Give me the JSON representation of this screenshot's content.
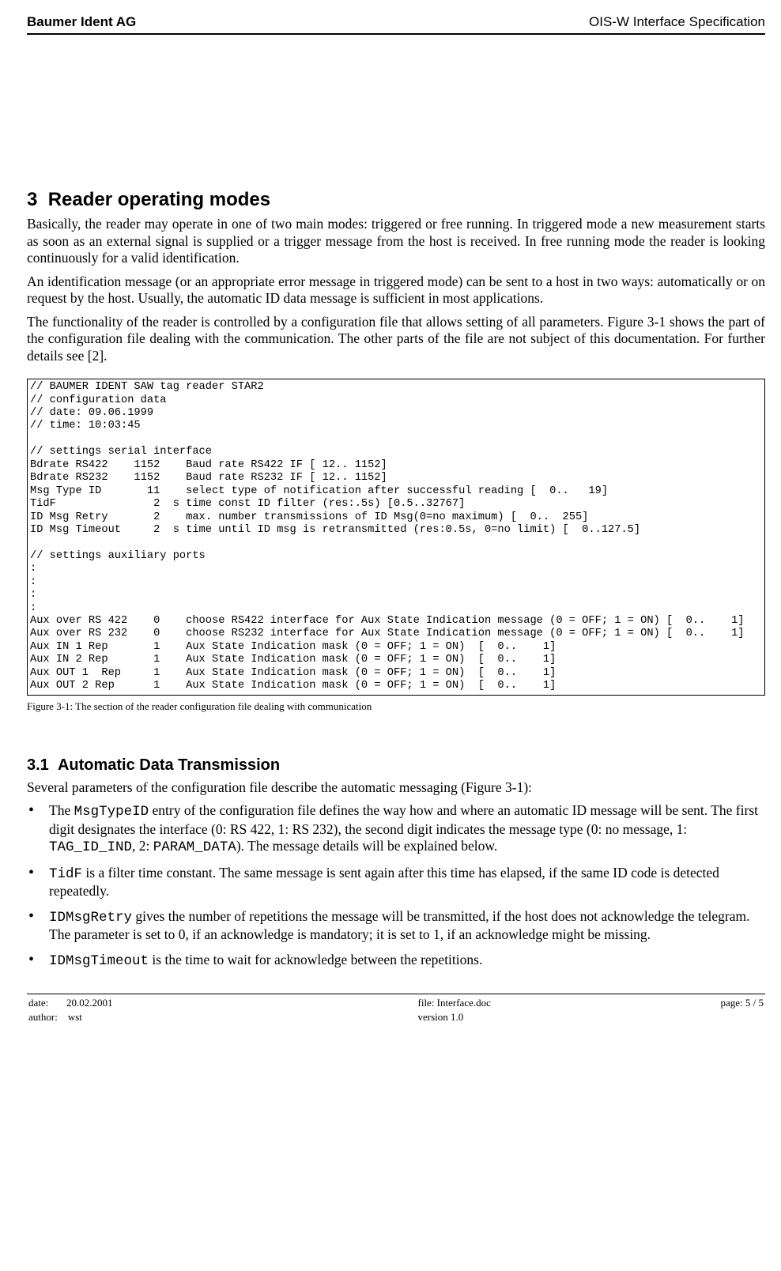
{
  "header": {
    "company": "Baumer Ident AG",
    "doc_title": "OIS-W Interface Specification"
  },
  "section": {
    "number": "3",
    "title": "Reader operating modes"
  },
  "paragraphs": {
    "p1": "Basically, the reader may operate in one of two main modes: triggered or free running. In triggered mode a new measurement starts as soon as an external signal is supplied or a trigger message from the host is received. In free running mode the reader is looking continuously for a valid identification.",
    "p2": "An identification message (or an appropriate error message in triggered mode) can be sent to a host in two ways: automatically or on request by the host. Usually, the automatic ID data message is sufficient in most applications.",
    "p3": "The functionality of the reader is controlled by a configuration file that allows setting of all parameters. Figure 3-1 shows the part of the configuration file dealing with the communication. The other parts of the file are not subject of this documentation. For further details see [2]."
  },
  "config_text": "// BAUMER IDENT SAW tag reader STAR2\n// configuration data\n// date: 09.06.1999\n// time: 10:03:45\n\n// settings serial interface\nBdrate RS422    1152    Baud rate RS422 IF [ 12.. 1152]\nBdrate RS232    1152    Baud rate RS232 IF [ 12.. 1152]\nMsg Type ID       11    select type of notification after successful reading [  0..   19]\nTidF               2  s time const ID filter (res:.5s) [0.5..32767]\nID Msg Retry       2    max. number transmissions of ID Msg(0=no maximum) [  0..  255]\nID Msg Timeout     2  s time until ID msg is retransmitted (res:0.5s, 0=no limit) [  0..127.5]\n\n// settings auxiliary ports\n:\n:\n:\n:\nAux over RS 422    0    choose RS422 interface for Aux State Indication message (0 = OFF; 1 = ON) [  0..    1]\nAux over RS 232    0    choose RS232 interface for Aux State Indication message (0 = OFF; 1 = ON) [  0..    1]\nAux IN 1 Rep       1    Aux State Indication mask (0 = OFF; 1 = ON)  [  0..    1]\nAux IN 2 Rep       1    Aux State Indication mask (0 = OFF; 1 = ON)  [  0..    1]\nAux OUT 1  Rep     1    Aux State Indication mask (0 = OFF; 1 = ON)  [  0..    1]\nAux OUT 2 Rep      1    Aux State Indication mask (0 = OFF; 1 = ON)  [  0..    1]",
  "figure_caption": "Figure 3-1: The section of the reader configuration file dealing with communication",
  "subsection": {
    "number": "3.1",
    "title": "Automatic Data Transmission"
  },
  "sub_intro": "Several parameters of the configuration file describe the automatic messaging (Figure 3-1):",
  "bullets": {
    "b1_pre": "The ",
    "b1_code": "MsgTypeID",
    "b1_mid": " entry of the configuration file defines the way how and where an automatic ID message will be sent. The first digit designates the interface (0: RS 422, 1: RS 232), the second digit indicates the message type (0: no message, 1: ",
    "b1_code2": "TAG_ID_IND",
    "b1_mid2": ", 2: ",
    "b1_code3": "PARAM_DATA",
    "b1_tail": "). The message details will be explained below.",
    "b2_code": "TidF",
    "b2_tail": " is a filter time constant. The same message is sent again after this time has elapsed, if the same ID code is detected repeatedly.",
    "b3_code": "IDMsgRetry",
    "b3_tail": " gives the number of repetitions the message will be transmitted, if the host does not acknowledge the telegram. The parameter is set to 0, if an acknowledge is mandatory; it is set to 1, if an acknowledge might be missing.",
    "b4_code": "IDMsgTimeout",
    "b4_tail": " is the time to wait for acknowledge between the repetitions."
  },
  "footer": {
    "date_label": "date:",
    "date_value": "20.02.2001",
    "author_label": "author:",
    "author_value": "wst",
    "file_label": "file: Interface.doc",
    "version_label": "version 1.0",
    "page_label": "page: 5 / 5"
  }
}
